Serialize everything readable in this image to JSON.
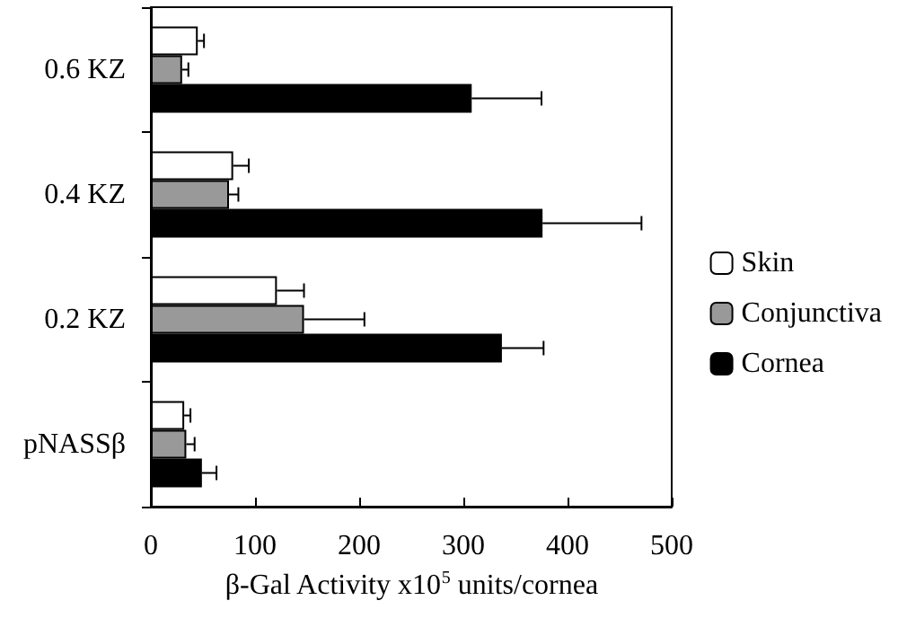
{
  "chart_data": {
    "type": "bar",
    "orientation": "horizontal",
    "xlabel": "β-Gal Activity x10$^{5}$ units/cornea",
    "categories": [
      "0.6 KZ",
      "0.4 KZ",
      "0.2 KZ",
      "pNASSβ"
    ],
    "series": [
      {
        "name": "Skin",
        "color": "#ffffff",
        "values": [
          45,
          79,
          121,
          32
        ],
        "errors": [
          [
            45,
            51
          ],
          [
            79,
            94
          ],
          [
            121,
            147
          ],
          [
            32,
            38
          ]
        ]
      },
      {
        "name": "Conjunctiva",
        "color": "#999999",
        "values": [
          30,
          75,
          147,
          34
        ],
        "errors": [
          [
            30,
            36
          ],
          [
            75,
            84
          ],
          [
            147,
            205
          ],
          [
            34,
            42
          ]
        ]
      },
      {
        "name": "Cornea",
        "color": "#000000",
        "values": [
          308,
          376,
          337,
          49
        ],
        "errors": [
          [
            308,
            375
          ],
          [
            376,
            471
          ],
          [
            337,
            377
          ],
          [
            49,
            63
          ]
        ]
      }
    ],
    "xlim": [
      0,
      500
    ],
    "xticks": [
      0,
      100,
      200,
      300,
      400,
      500
    ],
    "grid": false,
    "legend": "right"
  }
}
